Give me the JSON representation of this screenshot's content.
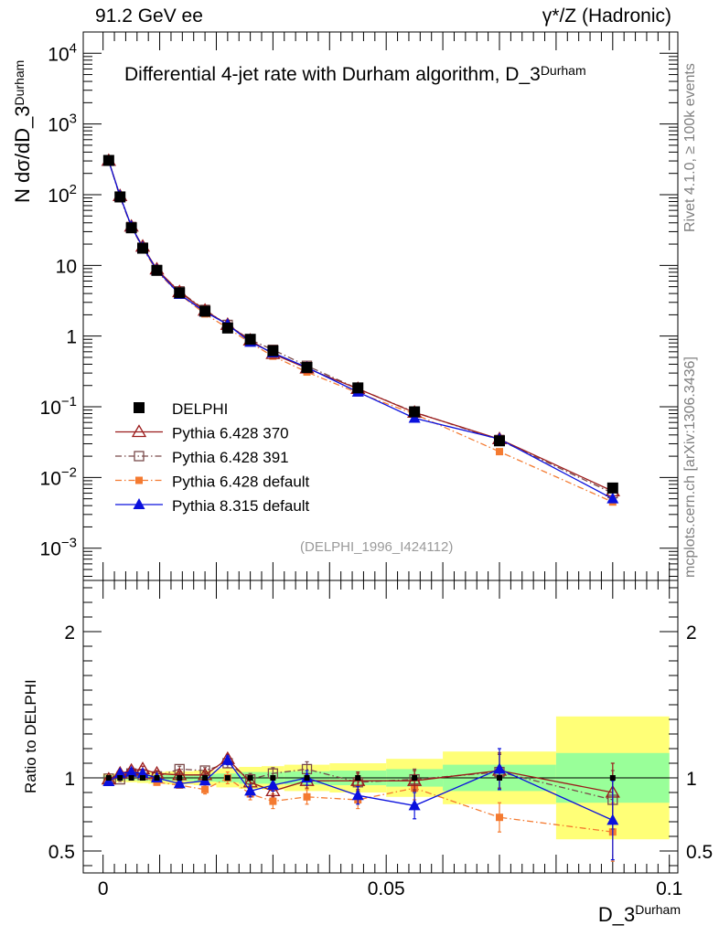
{
  "header": {
    "left": "91.2 GeV ee",
    "right": "γ*/Z (Hadronic)"
  },
  "side_labels": {
    "rivet": "Rivet 4.1.0, ≥ 100k events",
    "mcplots": "mcplots.cern.ch [arXiv:1306.3436]"
  },
  "main_title": {
    "text": "Differential 4-jet rate with Durham algorithm, D_3",
    "sup": "Durham"
  },
  "analysis_tag": "(DELPHI_1996_I424112)",
  "y_title_main": {
    "pre": "N  dσ/dD_3",
    "sup": "Durham"
  },
  "y_title_ratio": "Ratio to DELPHI",
  "x_title": {
    "text": "D_3",
    "sup": "Durham"
  },
  "colors": {
    "delphi": "#000000",
    "p6_370": "#9b1b1b",
    "p6_391": "#7a4a4a",
    "p6_def": "#f47a30",
    "p8_def": "#0a10dd",
    "band_green": "#99ff99",
    "band_yellow": "#ffff77"
  },
  "chart_data": [
    {
      "type": "scatter",
      "panel": "main",
      "title": "Differential 4-jet rate with Durham algorithm, D_3^Durham",
      "xlabel": "D_3^Durham",
      "ylabel": "N dsigma/dD_3^Durham",
      "yscale": "log",
      "xlim": [
        -0.0035,
        0.1015
      ],
      "ylim": [
        0.00035,
        20000
      ],
      "y_ticks": [
        {
          "base": "10",
          "exp": "4",
          "v": 10000
        },
        {
          "base": "10",
          "exp": "3",
          "v": 1000
        },
        {
          "base": "10",
          "exp": "2",
          "v": 100
        },
        {
          "base": "10",
          "exp": "",
          "v": 10
        },
        {
          "base": "1",
          "exp": "",
          "v": 1
        },
        {
          "base": "10",
          "exp": "−1",
          "v": 0.1
        },
        {
          "base": "10",
          "exp": "−2",
          "v": 0.01
        },
        {
          "base": "10",
          "exp": "−3",
          "v": 0.001
        }
      ],
      "legend_position": "lower-left",
      "x": [
        0.001,
        0.003,
        0.005,
        0.007,
        0.0095,
        0.0135,
        0.018,
        0.022,
        0.026,
        0.03,
        0.036,
        0.045,
        0.055,
        0.07,
        0.09
      ],
      "series": [
        {
          "name": "DELPHI",
          "key": "delphi",
          "marker": "square-filled",
          "line": "none",
          "values": [
            305,
            93,
            34,
            17.5,
            8.5,
            4.1,
            2.25,
            1.3,
            0.9,
            0.62,
            0.36,
            0.185,
            0.085,
            0.033,
            0.0071
          ]
        },
        {
          "name": "Pythia 6.428 370",
          "key": "p6_370",
          "marker": "triangle-open",
          "line": "solid",
          "values": [
            302,
            96,
            35.5,
            18.5,
            8.8,
            4.2,
            2.3,
            1.45,
            0.87,
            0.56,
            0.35,
            0.18,
            0.083,
            0.035,
            0.0064
          ]
        },
        {
          "name": "Pythia 6.428 391",
          "key": "p6_391",
          "marker": "square-open",
          "line": "dashdot",
          "values": [
            303,
            92,
            35,
            17.8,
            8.6,
            4.3,
            2.35,
            1.44,
            0.89,
            0.64,
            0.38,
            0.18,
            0.084,
            0.034,
            0.006
          ]
        },
        {
          "name": "Pythia 6.428 default",
          "key": "p6_def",
          "marker": "square-filled-small",
          "line": "dashdot",
          "values": [
            299,
            95,
            35,
            17.6,
            8.2,
            3.9,
            2.06,
            1.3,
            0.8,
            0.52,
            0.31,
            0.157,
            0.079,
            0.0232,
            0.0045
          ]
        },
        {
          "name": "Pythia 8.315 default",
          "key": "p8_def",
          "marker": "triangle-filled",
          "line": "solid",
          "values": [
            297,
            96,
            35.5,
            18,
            8.6,
            3.9,
            2.2,
            1.46,
            0.82,
            0.58,
            0.36,
            0.162,
            0.069,
            0.035,
            0.005
          ]
        }
      ]
    },
    {
      "type": "scatter",
      "panel": "ratio",
      "ylabel": "Ratio to DELPHI",
      "xlabel": "D_3^Durham",
      "xlim": [
        -0.0035,
        0.1015
      ],
      "ylim": [
        0.35,
        2.35
      ],
      "y_ticks": [
        {
          "label": "0.5",
          "v": 0.5
        },
        {
          "label": "1",
          "v": 1
        },
        {
          "label": "2",
          "v": 2
        }
      ],
      "x_ticks": [
        {
          "label": "0",
          "v": 0
        },
        {
          "label": "0.05",
          "v": 0.05
        },
        {
          "label": "0.1",
          "v": 0.1
        }
      ],
      "bands": [
        {
          "x0": 0.0,
          "x1": 0.002,
          "g": 0.015,
          "y": 0.03
        },
        {
          "x0": 0.002,
          "x1": 0.004,
          "g": 0.015,
          "y": 0.03
        },
        {
          "x0": 0.004,
          "x1": 0.006,
          "g": 0.015,
          "y": 0.03
        },
        {
          "x0": 0.006,
          "x1": 0.008,
          "g": 0.02,
          "y": 0.035
        },
        {
          "x0": 0.008,
          "x1": 0.011,
          "g": 0.02,
          "y": 0.04
        },
        {
          "x0": 0.011,
          "x1": 0.016,
          "g": 0.02,
          "y": 0.045
        },
        {
          "x0": 0.016,
          "x1": 0.02,
          "g": 0.025,
          "y": 0.05
        },
        {
          "x0": 0.02,
          "x1": 0.024,
          "g": 0.03,
          "y": 0.065
        },
        {
          "x0": 0.024,
          "x1": 0.028,
          "g": 0.04,
          "y": 0.075
        },
        {
          "x0": 0.028,
          "x1": 0.032,
          "g": 0.04,
          "y": 0.08
        },
        {
          "x0": 0.032,
          "x1": 0.04,
          "g": 0.045,
          "y": 0.09
        },
        {
          "x0": 0.04,
          "x1": 0.05,
          "g": 0.05,
          "y": 0.1
        },
        {
          "x0": 0.05,
          "x1": 0.06,
          "g": 0.06,
          "y": 0.13
        },
        {
          "x0": 0.06,
          "x1": 0.08,
          "g": 0.09,
          "y": 0.18
        },
        {
          "x0": 0.08,
          "x1": 0.1,
          "g": 0.17,
          "y": 0.42
        }
      ],
      "series": [
        {
          "name": "Pythia 6.428 370",
          "key": "p6_370",
          "values": [
            0.99,
            1.03,
            1.05,
            1.06,
            1.03,
            1.02,
            1.02,
            1.13,
            0.97,
            0.91,
            0.98,
            0.98,
            0.98,
            1.05,
            0.9
          ],
          "err": [
            0.01,
            0.015,
            0.015,
            0.02,
            0.02,
            0.02,
            0.02,
            0.03,
            0.04,
            0.04,
            0.05,
            0.06,
            0.07,
            0.12,
            0.2
          ]
        },
        {
          "name": "Pythia 6.428 391",
          "key": "p6_391",
          "values": [
            0.995,
            0.99,
            1.03,
            1.02,
            1.01,
            1.06,
            1.05,
            1.1,
            0.99,
            1.03,
            1.06,
            0.97,
            0.99,
            1.04,
            0.85
          ],
          "err": [
            0.01,
            0.015,
            0.015,
            0.02,
            0.02,
            0.02,
            0.02,
            0.03,
            0.04,
            0.04,
            0.05,
            0.06,
            0.07,
            0.12,
            0.2
          ]
        },
        {
          "name": "Pythia 6.428 default",
          "key": "p6_def",
          "values": [
            0.98,
            1.02,
            1.03,
            1.01,
            0.97,
            0.95,
            0.92,
            1.0,
            0.89,
            0.84,
            0.87,
            0.85,
            0.93,
            0.73,
            0.63
          ],
          "err": [
            0.01,
            0.015,
            0.015,
            0.02,
            0.02,
            0.02,
            0.03,
            0.04,
            0.04,
            0.05,
            0.05,
            0.06,
            0.08,
            0.1,
            0.2
          ]
        },
        {
          "name": "Pythia 8.315 default",
          "key": "p8_def",
          "values": [
            0.975,
            1.03,
            1.04,
            1.03,
            1.0,
            0.96,
            0.98,
            1.12,
            0.91,
            0.95,
            1.0,
            0.88,
            0.81,
            1.06,
            0.71
          ],
          "err": [
            0.01,
            0.015,
            0.015,
            0.02,
            0.02,
            0.02,
            0.02,
            0.03,
            0.04,
            0.04,
            0.05,
            0.06,
            0.09,
            0.14,
            0.27
          ]
        }
      ]
    }
  ]
}
